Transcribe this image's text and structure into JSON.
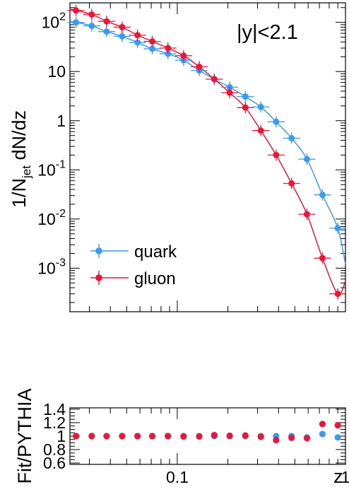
{
  "chart_data": [
    {
      "type": "scatter",
      "panel": "main",
      "annotation": "|y|<2.1",
      "ylabel_main": "1/N",
      "ylabel_sub": "jet",
      "ylabel_rest": " dN/dz",
      "xscale": "log",
      "yscale": "log",
      "xlim": [
        0.023,
        1.0
      ],
      "ylim": [
        0.00013,
        250
      ],
      "grid": false,
      "legend_position": "bottom-left",
      "y_ticks": [
        {
          "value": 100,
          "base": "10",
          "exp": "2"
        },
        {
          "value": 10,
          "base": "10",
          "exp": ""
        },
        {
          "value": 1,
          "base": "1",
          "exp": ""
        },
        {
          "value": 0.1,
          "base": "10",
          "exp": "-1"
        },
        {
          "value": 0.01,
          "base": "10",
          "exp": "-2"
        },
        {
          "value": 0.001,
          "base": "10",
          "exp": "-3"
        }
      ],
      "series": [
        {
          "name": "quark",
          "color": "#3d9be9",
          "x": [
            0.025,
            0.031,
            0.038,
            0.047,
            0.058,
            0.071,
            0.088,
            0.109,
            0.135,
            0.166,
            0.205,
            0.254,
            0.314,
            0.387,
            0.478,
            0.59,
            0.73,
            0.9
          ],
          "y": [
            100,
            85,
            65,
            52,
            39,
            29,
            23,
            17,
            10.5,
            7.0,
            4.8,
            3.1,
            1.9,
            0.95,
            0.44,
            0.165,
            0.031,
            0.0065
          ],
          "fit_end": [
            1.0,
            0.0012
          ]
        },
        {
          "name": "gluon",
          "color": "#e8173c",
          "x": [
            0.025,
            0.031,
            0.038,
            0.047,
            0.058,
            0.071,
            0.088,
            0.109,
            0.135,
            0.166,
            0.205,
            0.254,
            0.314,
            0.387,
            0.478,
            0.59,
            0.73,
            0.9
          ],
          "y": [
            175,
            145,
            105,
            80,
            55,
            41,
            30,
            21,
            12.5,
            7.0,
            3.7,
            1.85,
            0.63,
            0.2,
            0.053,
            0.0125,
            0.0016,
            0.0003
          ],
          "fit_end": [
            1.0,
            0.00055
          ]
        }
      ]
    },
    {
      "type": "scatter",
      "panel": "ratio",
      "ylabel": "Fit/PYTHIA",
      "xlabel": "z",
      "xscale": "log",
      "xlim": [
        0.023,
        1.0
      ],
      "ylim": [
        0.58,
        1.42
      ],
      "y_ticks": [
        "0.6",
        "0.8",
        "1",
        "1.2",
        "1.4"
      ],
      "x_ticks": [
        "0.1",
        "1"
      ],
      "series": [
        {
          "name": "quark",
          "color": "#3d9be9",
          "x": [
            0.025,
            0.031,
            0.038,
            0.047,
            0.058,
            0.071,
            0.088,
            0.109,
            0.135,
            0.166,
            0.205,
            0.254,
            0.314,
            0.387,
            0.478,
            0.59,
            0.73,
            0.9
          ],
          "y": [
            1.0,
            1.0,
            1.0,
            1.0,
            1.0,
            1.0,
            1.0,
            1.0,
            1.0,
            1.0,
            1.0,
            1.0,
            1.0,
            1.0,
            1.0,
            0.98,
            1.03,
            0.98
          ]
        },
        {
          "name": "gluon",
          "color": "#e8173c",
          "x": [
            0.025,
            0.031,
            0.038,
            0.047,
            0.058,
            0.071,
            0.088,
            0.109,
            0.135,
            0.166,
            0.205,
            0.254,
            0.314,
            0.387,
            0.478,
            0.59,
            0.73,
            0.9
          ],
          "y": [
            1.0,
            1.0,
            1.0,
            1.0,
            1.0,
            1.0,
            1.0,
            0.995,
            0.995,
            1.015,
            1.005,
            1.01,
            0.99,
            0.94,
            0.975,
            0.97,
            1.18,
            1.16
          ]
        }
      ]
    }
  ]
}
